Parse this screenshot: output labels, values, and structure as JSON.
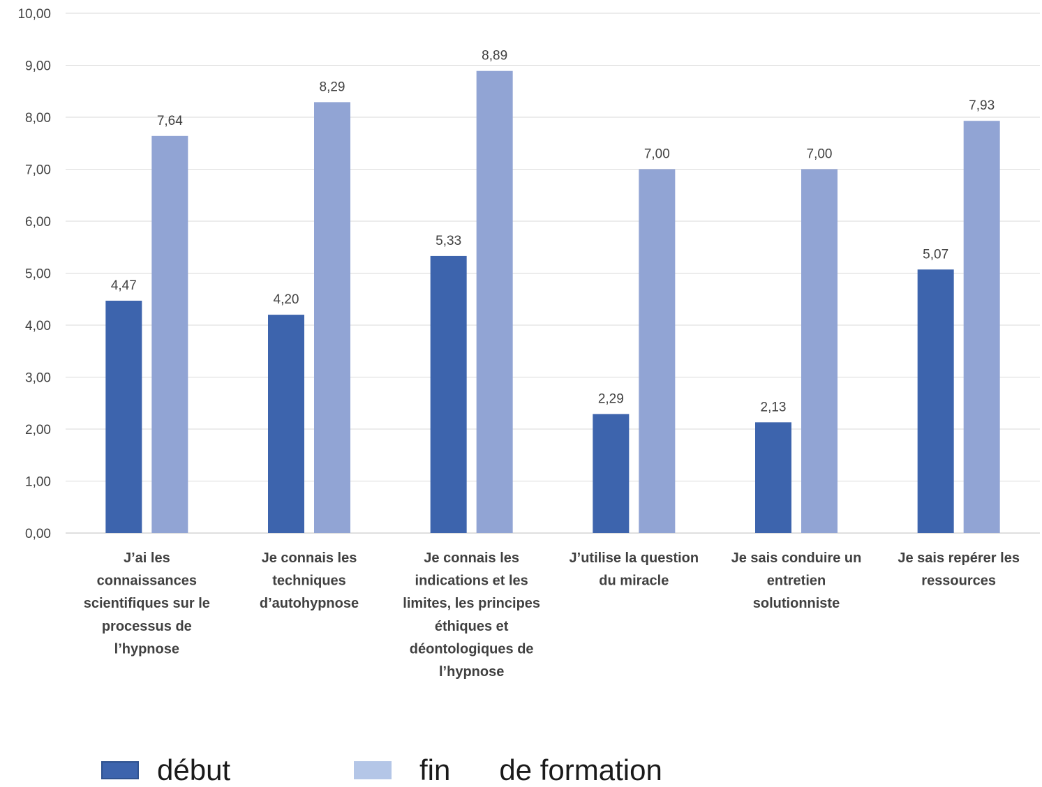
{
  "chart_data": {
    "type": "bar",
    "categories": [
      "J’ai les connaissances scientifiques sur le processus de l’hypnose",
      "Je connais les techniques d’autohypnose",
      "Je connais les indications et les limites, les principes éthiques et déontologiques de l’hypnose",
      "J’utilise la question du miracle",
      "Je sais conduire un entretien solutionniste",
      "Je sais repérer les ressources"
    ],
    "category_lines": [
      [
        "J’ai les",
        "connaissances",
        "scientifiques sur le",
        "processus de",
        "l’hypnose"
      ],
      [
        "Je connais les",
        "techniques",
        "d’autohypnose"
      ],
      [
        "Je connais les",
        "indications et les",
        "limites, les principes",
        "éthiques et",
        "déontologiques de",
        "l’hypnose"
      ],
      [
        "J’utilise la question",
        "du miracle"
      ],
      [
        "Je sais conduire un",
        "entretien",
        "solutionniste"
      ],
      [
        "Je sais repérer les",
        "ressources"
      ]
    ],
    "series": [
      {
        "name": "début",
        "color": "#3d64ad",
        "values": [
          4.47,
          4.2,
          5.33,
          2.29,
          2.13,
          5.07
        ]
      },
      {
        "name": "fin",
        "color": "#91a4d4",
        "values": [
          7.64,
          8.29,
          8.89,
          7.0,
          7.0,
          7.93
        ]
      }
    ],
    "data_labels": [
      [
        "4,47",
        "4,20",
        "5,33",
        "2,29",
        "2,13",
        "5,07"
      ],
      [
        "7,64",
        "8,29",
        "8,89",
        "7,00",
        "7,00",
        "7,93"
      ]
    ],
    "ylim": [
      0,
      10
    ],
    "yticks": [
      "0,00",
      "1,00",
      "2,00",
      "3,00",
      "4,00",
      "5,00",
      "6,00",
      "7,00",
      "8,00",
      "9,00",
      "10,00"
    ],
    "grid": true,
    "legend_position": "bottom",
    "title": "",
    "xlabel": "",
    "ylabel": ""
  },
  "legend": {
    "items": [
      {
        "label": "début",
        "color": "#3d64ad"
      },
      {
        "label": "fin      de formation",
        "color": "#b4c6e7"
      }
    ]
  }
}
